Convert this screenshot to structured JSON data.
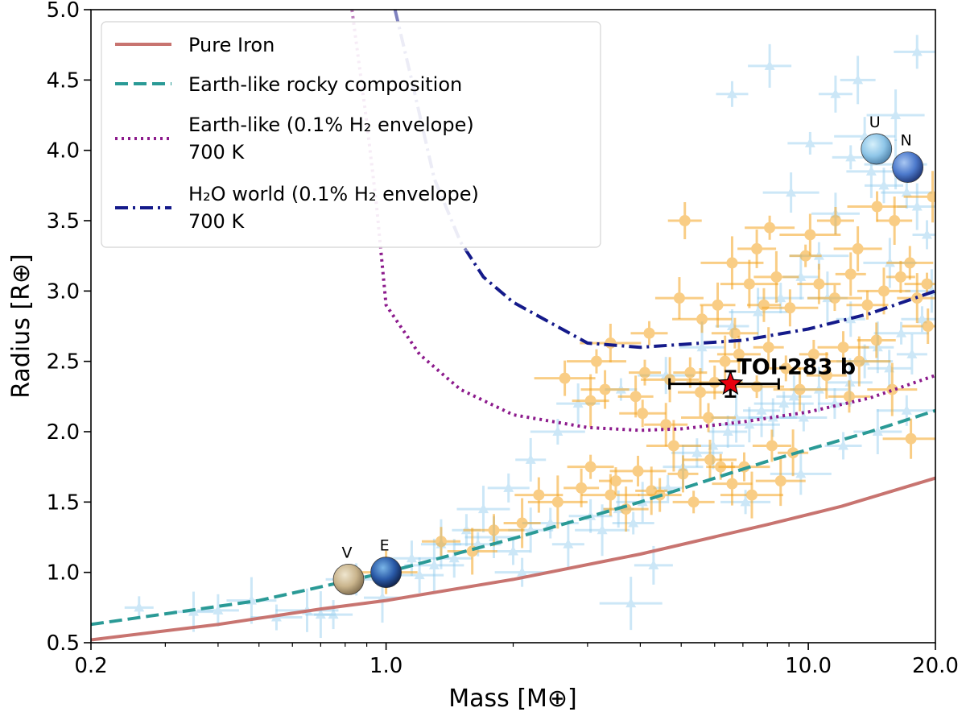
{
  "chart_data": {
    "type": "scatter",
    "xlabel": "Mass [M⊕]",
    "ylabel": "Radius [R⊕]",
    "xscale": "log",
    "xlim": [
      0.2,
      20.0
    ],
    "ylim": [
      0.5,
      5.0
    ],
    "xticks": [
      "0.2",
      "1.0",
      "10.0",
      "20.0"
    ],
    "yticks": [
      "0.5",
      "1.0",
      "1.5",
      "2.0",
      "2.5",
      "3.0",
      "3.5",
      "4.0",
      "4.5",
      "5.0"
    ],
    "colors": {
      "iron": "#c87470",
      "rocky": "#2a9a96",
      "h2": "#8c1a8c",
      "water": "#141a8a",
      "orange": "#f5a623",
      "blue": "#8fcbee",
      "target": "#e8000e"
    },
    "series": [
      {
        "name": "Pure Iron",
        "style": "solid",
        "x": [
          0.2,
          0.4,
          0.7,
          1.0,
          2.0,
          4.0,
          8.0,
          12.0,
          20.0
        ],
        "y": [
          0.52,
          0.63,
          0.74,
          0.8,
          0.95,
          1.13,
          1.34,
          1.47,
          1.67
        ]
      },
      {
        "name": "Earth-like rocky composition",
        "style": "dashed",
        "x": [
          0.2,
          0.5,
          1.0,
          2.0,
          4.0,
          8.0,
          14.0,
          20.0
        ],
        "y": [
          0.63,
          0.8,
          1.0,
          1.24,
          1.5,
          1.79,
          2.0,
          2.15
        ]
      },
      {
        "name": "Earth-like (0.1% H₂ envelope)",
        "legend_line2": "700 K",
        "style": "dotted",
        "x": [
          0.83,
          0.9,
          0.95,
          1.0,
          1.2,
          1.5,
          2.0,
          3.0,
          4.0,
          5.0,
          7.0,
          10.0,
          14.0,
          20.0
        ],
        "y": [
          5.0,
          4.2,
          3.6,
          2.9,
          2.55,
          2.3,
          2.12,
          2.03,
          2.01,
          2.02,
          2.07,
          2.14,
          2.24,
          2.4
        ]
      },
      {
        "name": "H₂O world (0.1% H₂ envelope)",
        "legend_line2": "700 K",
        "style": "dashdot",
        "x": [
          1.05,
          1.15,
          1.3,
          1.5,
          1.7,
          2.0,
          3.0,
          4.0,
          5.0,
          7.0,
          10.0,
          14.0,
          20.0
        ],
        "y": [
          5.0,
          4.5,
          3.8,
          3.35,
          3.1,
          2.92,
          2.63,
          2.6,
          2.62,
          2.65,
          2.73,
          2.84,
          3.0
        ]
      }
    ],
    "orange_points": [
      [
        1.0,
        1.0
      ],
      [
        1.35,
        1.22
      ],
      [
        1.6,
        1.15
      ],
      [
        1.8,
        1.3
      ],
      [
        2.1,
        1.35
      ],
      [
        2.3,
        1.55
      ],
      [
        2.55,
        1.5
      ],
      [
        2.9,
        1.6
      ],
      [
        3.05,
        1.75
      ],
      [
        3.4,
        1.55
      ],
      [
        3.5,
        1.65
      ],
      [
        3.7,
        1.45
      ],
      [
        3.95,
        1.72
      ],
      [
        4.25,
        1.58
      ],
      [
        4.45,
        1.55
      ],
      [
        4.8,
        1.9
      ],
      [
        5.05,
        1.7
      ],
      [
        5.35,
        1.5
      ],
      [
        5.85,
        1.8
      ],
      [
        6.2,
        1.75
      ],
      [
        6.6,
        1.63
      ],
      [
        7.05,
        1.75
      ],
      [
        7.35,
        1.55
      ],
      [
        8.2,
        1.9
      ],
      [
        8.6,
        1.65
      ],
      [
        2.65,
        2.38
      ],
      [
        3.05,
        2.22
      ],
      [
        3.3,
        2.3
      ],
      [
        3.15,
        2.5
      ],
      [
        3.9,
        2.25
      ],
      [
        4.05,
        2.13
      ],
      [
        4.7,
        2.37
      ],
      [
        5.25,
        2.42
      ],
      [
        5.55,
        2.28
      ],
      [
        6.0,
        2.35
      ],
      [
        6.35,
        2.5
      ],
      [
        6.85,
        2.55
      ],
      [
        7.55,
        2.32
      ],
      [
        8.05,
        2.6
      ],
      [
        8.85,
        2.45
      ],
      [
        9.55,
        2.3
      ],
      [
        10.3,
        2.55
      ],
      [
        11.05,
        2.4
      ],
      [
        12.1,
        2.6
      ],
      [
        13.2,
        2.5
      ],
      [
        14.5,
        2.65
      ],
      [
        15.8,
        2.3
      ],
      [
        3.4,
        2.63
      ],
      [
        4.2,
        2.7
      ],
      [
        4.95,
        2.95
      ],
      [
        5.6,
        2.8
      ],
      [
        6.1,
        2.9
      ],
      [
        6.7,
        2.7
      ],
      [
        7.25,
        3.05
      ],
      [
        7.85,
        2.9
      ],
      [
        8.4,
        3.1
      ],
      [
        9.05,
        2.88
      ],
      [
        9.85,
        3.25
      ],
      [
        10.6,
        3.05
      ],
      [
        11.55,
        2.95
      ],
      [
        12.6,
        3.12
      ],
      [
        13.8,
        2.9
      ],
      [
        15.1,
        3.0
      ],
      [
        16.55,
        3.1
      ],
      [
        18.1,
        2.95
      ],
      [
        19.2,
        2.75
      ],
      [
        6.6,
        3.2
      ],
      [
        7.55,
        3.3
      ],
      [
        8.1,
        3.45
      ],
      [
        10.1,
        3.4
      ],
      [
        11.6,
        3.5
      ],
      [
        13.1,
        3.3
      ],
      [
        14.55,
        3.6
      ],
      [
        16.0,
        3.5
      ],
      [
        17.4,
        3.2
      ],
      [
        19.7,
        3.67
      ],
      [
        5.1,
        3.5
      ],
      [
        19.1,
        3.05
      ],
      [
        17.5,
        1.95
      ],
      [
        4.1,
        2.42
      ],
      [
        4.6,
        2.05
      ],
      [
        5.8,
        2.1
      ],
      [
        9.2,
        1.85
      ],
      [
        12.5,
        2.25
      ]
    ],
    "blue_points": [
      [
        0.26,
        0.75
      ],
      [
        0.35,
        0.72
      ],
      [
        0.55,
        0.68
      ],
      [
        0.65,
        0.73
      ],
      [
        0.75,
        0.7
      ],
      [
        0.48,
        0.8
      ],
      [
        0.85,
        0.95
      ],
      [
        0.98,
        0.82
      ],
      [
        1.2,
        0.98
      ],
      [
        1.3,
        1.05
      ],
      [
        1.45,
        1.1
      ],
      [
        1.65,
        1.2
      ],
      [
        1.8,
        1.25
      ],
      [
        2.0,
        1.15
      ],
      [
        2.2,
        1.3
      ],
      [
        2.45,
        1.35
      ],
      [
        2.7,
        1.2
      ],
      [
        3.05,
        1.4
      ],
      [
        3.25,
        1.3
      ],
      [
        3.55,
        1.45
      ],
      [
        3.85,
        1.35
      ],
      [
        4.05,
        1.5
      ],
      [
        4.65,
        1.6
      ],
      [
        5.05,
        1.75
      ],
      [
        5.45,
        1.85
      ],
      [
        5.95,
        1.9
      ],
      [
        6.45,
        2.0
      ],
      [
        6.75,
        2.1
      ],
      [
        7.25,
        2.05
      ],
      [
        7.75,
        2.15
      ],
      [
        8.25,
        2.1
      ],
      [
        8.75,
        2.2
      ],
      [
        9.25,
        2.25
      ],
      [
        9.75,
        2.1
      ],
      [
        10.6,
        2.3
      ],
      [
        11.55,
        2.2
      ],
      [
        12.55,
        2.35
      ],
      [
        13.6,
        2.5
      ],
      [
        14.6,
        2.6
      ],
      [
        15.55,
        2.45
      ],
      [
        16.6,
        2.7
      ],
      [
        17.6,
        2.55
      ],
      [
        18.6,
        2.8
      ],
      [
        19.6,
        3.0
      ],
      [
        19.1,
        3.4
      ],
      [
        18.1,
        3.6
      ],
      [
        17.1,
        3.7
      ],
      [
        16.1,
        3.9
      ],
      [
        15.1,
        3.75
      ],
      [
        14.1,
        3.85
      ],
      [
        13.6,
        4.1
      ],
      [
        12.6,
        3.95
      ],
      [
        11.6,
        3.55
      ],
      [
        10.6,
        3.25
      ],
      [
        9.6,
        3.1
      ],
      [
        8.6,
        2.95
      ],
      [
        7.6,
        2.85
      ],
      [
        6.6,
        2.75
      ],
      [
        5.6,
        2.6
      ],
      [
        4.6,
        2.4
      ],
      [
        3.6,
        2.3
      ],
      [
        2.85,
        2.2
      ],
      [
        2.55,
        2.0
      ],
      [
        2.2,
        1.8
      ],
      [
        1.95,
        1.6
      ],
      [
        1.7,
        1.45
      ],
      [
        1.55,
        1.3
      ],
      [
        1.35,
        1.2
      ],
      [
        1.15,
        1.1
      ],
      [
        3.8,
        0.78
      ],
      [
        4.3,
        1.05
      ],
      [
        7.1,
        1.5
      ],
      [
        9.6,
        1.7
      ],
      [
        12.1,
        1.9
      ],
      [
        14.6,
        2.0
      ],
      [
        17.1,
        2.15
      ],
      [
        13.1,
        4.5
      ],
      [
        18.1,
        4.7
      ],
      [
        16.1,
        4.25
      ],
      [
        11.6,
        4.4
      ],
      [
        10.1,
        4.05
      ],
      [
        9.1,
        3.7
      ],
      [
        6.6,
        4.4
      ],
      [
        8.1,
        4.6
      ],
      [
        2.1,
        1.0
      ],
      [
        0.7,
        0.7
      ],
      [
        0.4,
        0.73
      ],
      [
        15.6,
        3.2
      ],
      [
        12.6,
        2.8
      ],
      [
        11.1,
        2.95
      ]
    ],
    "solar_system": [
      {
        "label": "V",
        "x": 0.815,
        "y": 0.95
      },
      {
        "label": "E",
        "x": 1.0,
        "y": 1.0
      },
      {
        "label": "U",
        "x": 14.5,
        "y": 4.01
      },
      {
        "label": "N",
        "x": 17.2,
        "y": 3.88
      }
    ],
    "target": {
      "label": "TOI-283 b",
      "mass": 6.54,
      "mass_err_low": 1.85,
      "mass_err_high": 1.97,
      "radius": 2.34,
      "radius_err": 0.09
    }
  }
}
